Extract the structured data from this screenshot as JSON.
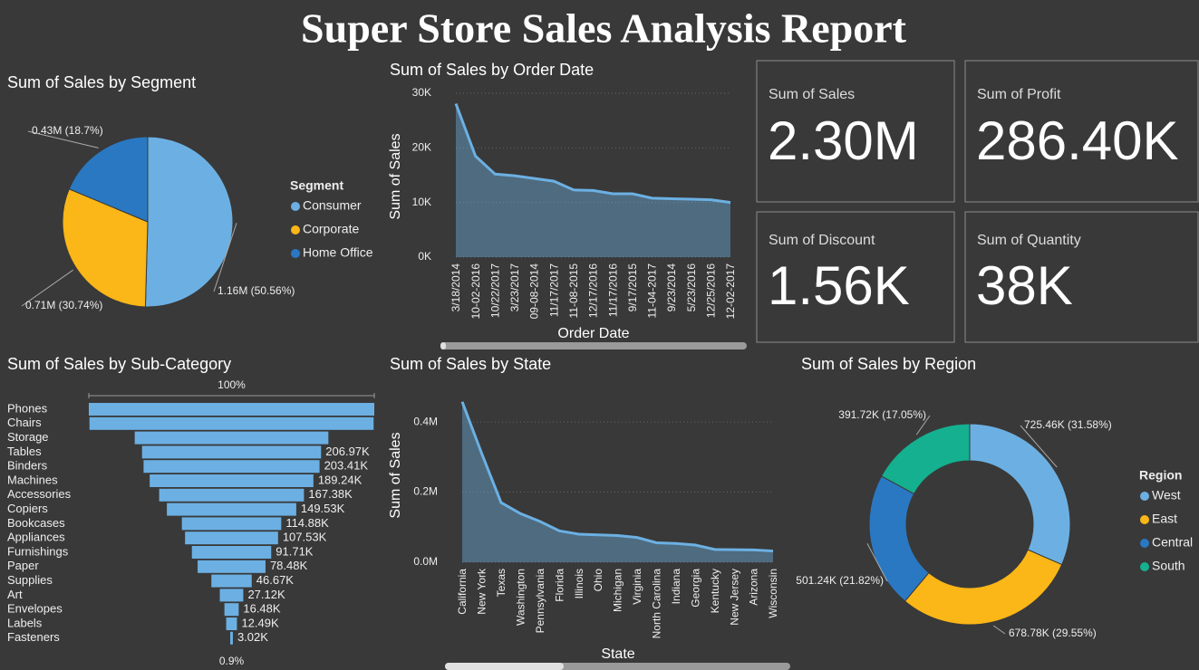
{
  "title": "Super Store Sales Analysis Report",
  "cards": [
    {
      "label": "Sum of Sales",
      "value": "2.30M"
    },
    {
      "label": "Sum of Profit",
      "value": "286.40K"
    },
    {
      "label": "Sum of Discount",
      "value": "1.56K"
    },
    {
      "label": "Sum of Quantity",
      "value": "38K"
    }
  ],
  "chart_data": [
    {
      "type": "pie",
      "title": "Sum of Sales by Segment",
      "legend_title": "Segment",
      "categories": [
        "Consumer",
        "Corporate",
        "Home Office"
      ],
      "values": [
        1.16,
        0.71,
        0.43
      ],
      "value_labels": [
        "1.16M (50.56%)",
        "0.71M (30.74%)",
        "0.43M (18.7%)"
      ],
      "colors": [
        "#6cb0e3",
        "#fbb617",
        "#2a78c2"
      ]
    },
    {
      "type": "area",
      "title": "Sum of Sales by Order Date",
      "x_label": "Order Date",
      "y_label": "Sum of Sales",
      "categories": [
        "3/18/2014",
        "10-02-2016",
        "10/22/2017",
        "3/23/2017",
        "09-08-2014",
        "11/17/2017",
        "11-08-2015",
        "12/17/2016",
        "11/17/2016",
        "9/17/2015",
        "11-04-2017",
        "9/23/2014",
        "5/23/2016",
        "12/25/2016",
        "12-02-2017"
      ],
      "values": [
        28100,
        18500,
        15200,
        14900,
        14400,
        13900,
        12300,
        12200,
        11600,
        11600,
        10800,
        10700,
        10600,
        10500,
        10000
      ],
      "color": "#6cb0e3",
      "ylim": [
        0,
        30000
      ],
      "yticks": [
        {
          "value": 0,
          "label": "0K"
        },
        {
          "value": 10000,
          "label": "10K"
        },
        {
          "value": 20000,
          "label": "20K"
        },
        {
          "value": 30000,
          "label": "30K"
        }
      ],
      "grid": true
    },
    {
      "type": "funnel",
      "title": "Sum of Sales by Sub-Category",
      "top_label": "100%",
      "bottom_label": "0.9%",
      "categories": [
        "Phones",
        "Chairs",
        "Storage",
        "Tables",
        "Binders",
        "Machines",
        "Accessories",
        "Copiers",
        "Bookcases",
        "Appliances",
        "Furnishings",
        "Paper",
        "Supplies",
        "Art",
        "Envelopes",
        "Labels",
        "Fasteners"
      ],
      "values": [
        330007,
        328449,
        223844,
        206970,
        203410,
        189240,
        167380,
        149530,
        114880,
        107530,
        91710,
        78480,
        46670,
        27120,
        16480,
        12490,
        3020
      ],
      "value_labels": [
        null,
        null,
        null,
        "206.97K",
        "203.41K",
        "189.24K",
        "167.38K",
        "149.53K",
        "114.88K",
        "107.53K",
        "91.71K",
        "78.48K",
        "46.67K",
        "27.12K",
        "16.48K",
        "12.49K",
        "3.02K"
      ],
      "color": "#6cb0e3"
    },
    {
      "type": "area",
      "title": "Sum of Sales by State",
      "x_label": "State",
      "y_label": "Sum of Sales",
      "categories": [
        "California",
        "New York",
        "Texas",
        "Washington",
        "Pennsylvania",
        "Florida",
        "Illinois",
        "Ohio",
        "Michigan",
        "Virginia",
        "North Carolina",
        "Indiana",
        "Georgia",
        "Kentucky",
        "New Jersey",
        "Arizona",
        "Wisconsin"
      ],
      "values": [
        457688,
        310876,
        170188,
        138641,
        116512,
        89474,
        80166,
        78258,
        76270,
        70637,
        55603,
        53555,
        49096,
        36592,
        35764,
        35282,
        32115
      ],
      "color": "#6cb0e3",
      "ylim": [
        0,
        470000
      ],
      "yticks": [
        {
          "value": 0,
          "label": "0.0M"
        },
        {
          "value": 200000,
          "label": "0.2M"
        },
        {
          "value": 400000,
          "label": "0.4M"
        }
      ],
      "grid": true
    },
    {
      "type": "donut",
      "title": "Sum of Sales by Region",
      "legend_title": "Region",
      "categories": [
        "West",
        "East",
        "Central",
        "South"
      ],
      "values": [
        725.46,
        678.78,
        501.24,
        391.72
      ],
      "value_labels": [
        "725.46K (31.58%)",
        "678.78K (29.55%)",
        "501.24K (21.82%)",
        "391.72K (17.05%)"
      ],
      "colors": [
        "#6cb0e3",
        "#fbb617",
        "#2a78c2",
        "#14b08f"
      ]
    }
  ]
}
